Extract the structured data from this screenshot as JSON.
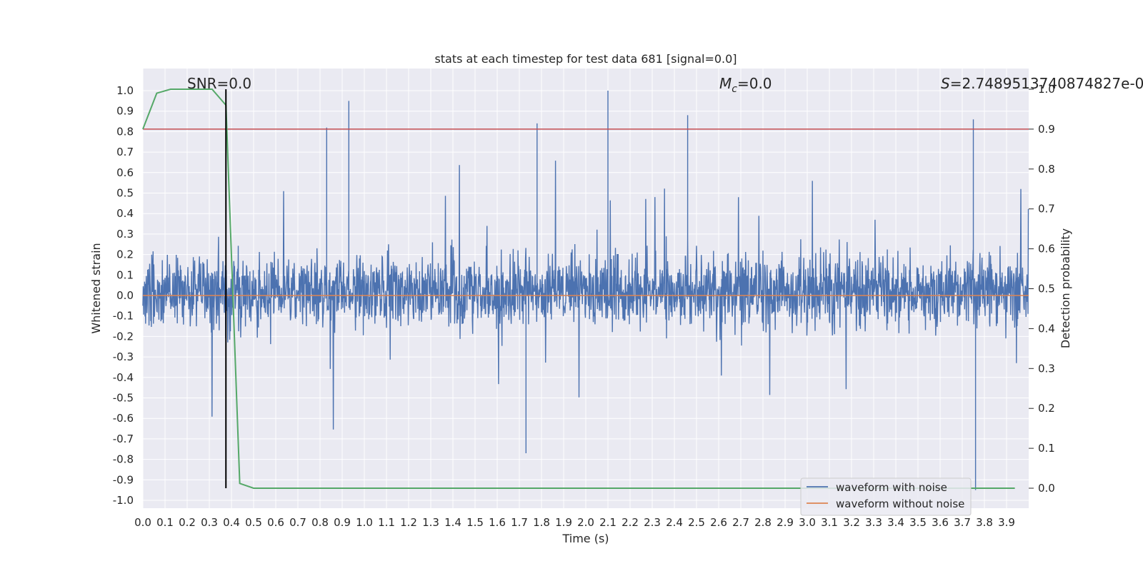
{
  "chart_data": {
    "type": "line",
    "title": "stats at each timestep for test data 681 [signal=0.0]",
    "xlabel": "Time (s)",
    "ylabel": "Whitened strain",
    "y2label": "Detection probability",
    "xlim": [
      0.0,
      4.0
    ],
    "ylim": [
      -1.05,
      1.05
    ],
    "y2lim": [
      -0.05,
      1.0
    ],
    "x_ticks": [
      "0.0",
      "0.1",
      "0.2",
      "0.3",
      "0.4",
      "0.5",
      "0.6",
      "0.7",
      "0.8",
      "0.9",
      "1.0",
      "1.1",
      "1.2",
      "1.3",
      "1.4",
      "1.5",
      "1.6",
      "1.7",
      "1.8",
      "1.9",
      "2.0",
      "2.1",
      "2.2",
      "2.3",
      "2.4",
      "2.5",
      "2.6",
      "2.7",
      "2.8",
      "2.9",
      "3.0",
      "3.1",
      "3.2",
      "3.3",
      "3.4",
      "3.5",
      "3.6",
      "3.7",
      "3.8",
      "3.9"
    ],
    "y_ticks": [
      "1.0",
      "0.9",
      "0.8",
      "0.7",
      "0.6",
      "0.5",
      "0.4",
      "0.3",
      "0.2",
      "0.1",
      "0.0",
      "-0.1",
      "-0.2",
      "-0.3",
      "-0.4",
      "-0.5",
      "-0.6",
      "-0.7",
      "-0.8",
      "-0.9",
      "-1.0"
    ],
    "y2_ticks": [
      "0.0",
      "0.1",
      "0.2",
      "0.3",
      "0.4",
      "0.5",
      "0.6",
      "0.7",
      "0.8",
      "0.9",
      "1.0"
    ],
    "annotations": {
      "snr": "SNR=0.0",
      "mc_symbol": "M",
      "mc_sub": "c",
      "mc_value": "=0.0",
      "s_symbol": "S",
      "s_value": "=2.7489513740874827e-0"
    },
    "series": [
      {
        "name": "waveform with noise",
        "color": "#4c72b0",
        "envelope": "noisy strain, mostly within [-0.45, 0.45], peaks near 1.0 and -0.95"
      },
      {
        "name": "waveform without noise",
        "color": "#dd8452",
        "values_constant": 0.0
      },
      {
        "color": "#55a868",
        "axis": "y2",
        "x": [
          0.0,
          0.0625,
          0.125,
          0.1875,
          0.25,
          0.3125,
          0.375,
          0.4375,
          0.5,
          0.5625,
          3.9375
        ],
        "values": [
          0.9,
          0.99,
          1.0,
          1.0,
          1.0,
          1.0,
          0.96,
          0.012,
          0.0,
          0.0,
          0.0
        ]
      }
    ],
    "threshold": {
      "value_y2": 0.9,
      "color": "#c44e52"
    },
    "vline": {
      "x": 0.375,
      "color": "#000000"
    },
    "legend_placement": "lower-right",
    "grid": true
  }
}
